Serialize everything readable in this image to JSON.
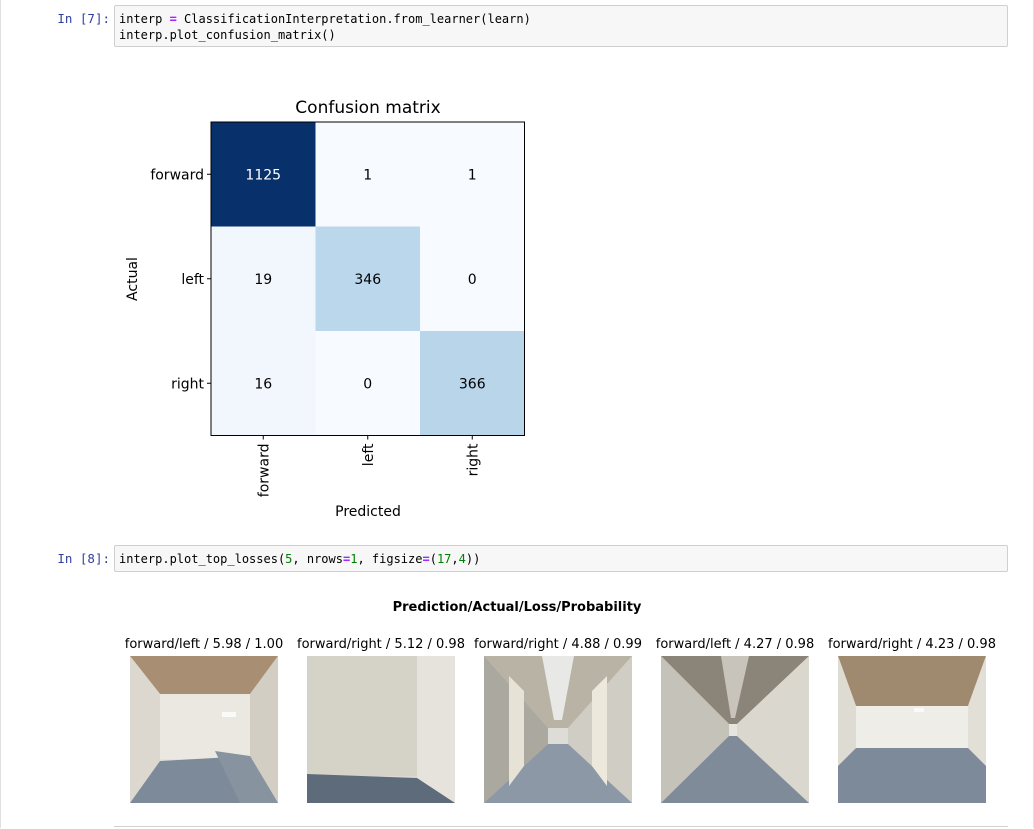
{
  "cells": [
    {
      "prompt": "In [7]:",
      "code_lines": [
        [
          {
            "t": "interp "
          },
          {
            "t": "=",
            "op": true
          },
          {
            "t": " ClassificationInterpretation.from_learner(learn)"
          }
        ],
        [
          {
            "t": "interp.plot_confusion_matrix()"
          }
        ]
      ]
    },
    {
      "prompt": "In [8]:",
      "code_lines": [
        [
          {
            "t": "interp.plot_top_losses("
          },
          {
            "t": "5",
            "num": true
          },
          {
            "t": ", nrows"
          },
          {
            "t": "=",
            "op": true
          },
          {
            "t": "1",
            "num": true
          },
          {
            "t": ", figsize"
          },
          {
            "t": "=",
            "op": true
          },
          {
            "t": "("
          },
          {
            "t": "17",
            "num": true
          },
          {
            "t": ","
          },
          {
            "t": "4",
            "num": true
          },
          {
            "t": "))"
          }
        ]
      ]
    }
  ],
  "chart_data": {
    "type": "heatmap",
    "title": "Confusion matrix",
    "xlabel": "Predicted",
    "ylabel": "Actual",
    "row_labels": [
      "forward",
      "left",
      "right"
    ],
    "col_labels": [
      "forward",
      "left",
      "right"
    ],
    "values": [
      [
        1125,
        1,
        1
      ],
      [
        19,
        346,
        0
      ],
      [
        16,
        0,
        366
      ]
    ],
    "colormap": "Blues",
    "colors": {
      "max": "#08306b",
      "mid": "#b3d2e9",
      "low": "#f0f6fd",
      "zero": "#f7fbff"
    }
  },
  "top_losses": {
    "title": "Prediction/Actual/Loss/Probability",
    "items": [
      {
        "caption": "forward/left / 5.98 / 1.00"
      },
      {
        "caption": "forward/right / 5.12 / 0.98"
      },
      {
        "caption": "forward/right / 4.88 / 0.99"
      },
      {
        "caption": "forward/left / 4.27 / 0.98"
      },
      {
        "caption": "forward/right / 4.23 / 0.98"
      }
    ]
  }
}
